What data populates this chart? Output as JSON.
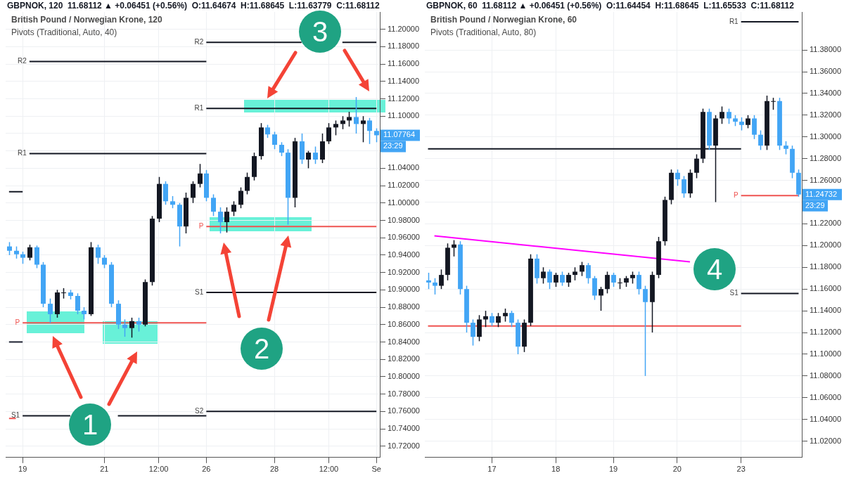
{
  "chart_data": [
    {
      "type": "candlestick",
      "title": "GBPNOK, 120  11.68112 ▲ +0.06451 (+0.56%)  O:11.64674  H:11.68645  L:11.63779  C:11.68112",
      "subtitle": "British Pound / Norwegian Krone, 120",
      "annotations": [
        "Pivots (Traditional, Auto, 40)",
        "11.07764",
        "23:29",
        "1",
        "2",
        "3"
      ],
      "categories": [
        null,
        null,
        "19",
        null,
        null,
        null,
        null,
        null,
        null,
        null,
        null,
        null,
        null,
        null,
        "21",
        null,
        null,
        null,
        null,
        null,
        null,
        null,
        "12:00",
        null,
        null,
        null,
        null,
        null,
        null,
        "26",
        null,
        null,
        null,
        null,
        null,
        null,
        null,
        null,
        null,
        "28",
        null,
        null,
        null,
        null,
        null,
        null,
        null,
        "12:00",
        null,
        null,
        null,
        null,
        null,
        null,
        "Se"
      ],
      "ohlc": [
        [
          10.95,
          10.955,
          10.94,
          10.945
        ],
        [
          10.945,
          10.95,
          10.936,
          10.941
        ],
        [
          10.941,
          10.944,
          10.93,
          10.937
        ],
        [
          10.937,
          10.952,
          10.934,
          10.949
        ],
        [
          10.949,
          10.951,
          10.925,
          10.929
        ],
        [
          10.929,
          10.932,
          10.88,
          10.884
        ],
        [
          10.884,
          10.89,
          10.862,
          10.872
        ],
        [
          10.872,
          10.9,
          10.868,
          10.897
        ],
        [
          10.897,
          10.902,
          10.89,
          10.897
        ],
        [
          10.897,
          10.9,
          10.889,
          10.893
        ],
        [
          10.893,
          10.896,
          10.872,
          10.876
        ],
        [
          10.876,
          10.88,
          10.866,
          10.872
        ],
        [
          10.872,
          10.955,
          10.87,
          10.949
        ],
        [
          10.949,
          10.952,
          10.93,
          10.937
        ],
        [
          10.937,
          10.94,
          10.925,
          10.929
        ],
        [
          10.929,
          10.932,
          10.88,
          10.884
        ],
        [
          10.884,
          10.888,
          10.855,
          10.86
        ],
        [
          10.86,
          10.866,
          10.846,
          10.856
        ],
        [
          10.856,
          10.868,
          10.845,
          10.864
        ],
        [
          10.864,
          10.868,
          10.852,
          10.86
        ],
        [
          10.86,
          10.912,
          10.858,
          10.909
        ],
        [
          10.909,
          10.985,
          10.905,
          10.982
        ],
        [
          10.982,
          11.03,
          10.978,
          11.022
        ],
        [
          11.022,
          11.025,
          10.998,
          11.002
        ],
        [
          11.002,
          11.008,
          10.994,
          10.998
        ],
        [
          10.998,
          11.0,
          10.95,
          10.973
        ],
        [
          10.973,
          11.012,
          10.965,
          11.006
        ],
        [
          11.006,
          11.025,
          11.0,
          11.022
        ],
        [
          11.022,
          11.045,
          11.018,
          11.034
        ],
        [
          11.034,
          11.038,
          11.002,
          11.006
        ],
        [
          11.006,
          11.01,
          10.985,
          10.99
        ],
        [
          10.99,
          10.995,
          10.965,
          10.978
        ],
        [
          10.978,
          10.995,
          10.966,
          10.99
        ],
        [
          10.99,
          11.002,
          10.985,
          10.998
        ],
        [
          10.998,
          11.018,
          10.994,
          11.014
        ],
        [
          11.014,
          11.035,
          11.01,
          11.03
        ],
        [
          11.03,
          11.058,
          11.026,
          11.054
        ],
        [
          11.054,
          11.092,
          11.05,
          11.087
        ],
        [
          11.087,
          11.09,
          11.075,
          11.079
        ],
        [
          11.079,
          11.082,
          11.062,
          11.067
        ],
        [
          11.067,
          11.07,
          11.054,
          11.058
        ],
        [
          11.058,
          11.062,
          10.975,
          11.006
        ],
        [
          11.006,
          11.075,
          10.995,
          11.071
        ],
        [
          11.071,
          11.08,
          11.045,
          11.05
        ],
        [
          11.05,
          11.06,
          11.04,
          11.058
        ],
        [
          11.058,
          11.065,
          11.045,
          11.05
        ],
        [
          11.05,
          11.08,
          11.046,
          11.071
        ],
        [
          11.071,
          11.092,
          11.068,
          11.087
        ],
        [
          11.087,
          11.095,
          11.078,
          11.091
        ],
        [
          11.091,
          11.1,
          11.085,
          11.095
        ],
        [
          11.095,
          11.105,
          11.088,
          11.099
        ],
        [
          11.099,
          11.122,
          11.08,
          11.091
        ],
        [
          11.091,
          11.1,
          11.07,
          11.095
        ],
        [
          11.095,
          11.098,
          11.068,
          11.083
        ],
        [
          11.083,
          11.086,
          11.07,
          11.078
        ]
      ],
      "colors": [
        "#42a5f5",
        "#42a5f5",
        "#42a5f5",
        "#131722",
        "#42a5f5",
        "#42a5f5",
        "#42a5f5",
        "#131722",
        "#131722",
        "#42a5f5",
        "#42a5f5",
        "#42a5f5",
        "#131722",
        "#42a5f5",
        "#42a5f5",
        "#42a5f5",
        "#42a5f5",
        "#42a5f5",
        "#131722",
        "#42a5f5",
        "#131722",
        "#131722",
        "#131722",
        "#42a5f5",
        "#42a5f5",
        "#42a5f5",
        "#131722",
        "#131722",
        "#131722",
        "#42a5f5",
        "#42a5f5",
        "#42a5f5",
        "#131722",
        "#131722",
        "#131722",
        "#131722",
        "#131722",
        "#131722",
        "#42a5f5",
        "#42a5f5",
        "#42a5f5",
        "#42a5f5",
        "#131722",
        "#42a5f5",
        "#131722",
        "#42a5f5",
        "#131722",
        "#131722",
        "#131722",
        "#131722",
        "#131722",
        "#42a5f5",
        "#131722",
        "#42a5f5",
        "#42a5f5"
      ],
      "series": [
        {
          "type": "line",
          "name": "R2",
          "color": "#131722",
          "values": [
            null,
            null,
            null,
            11.163,
            11.163,
            11.163,
            11.163,
            11.163,
            11.163,
            11.163,
            11.163,
            11.163,
            11.163,
            11.163,
            11.163,
            11.163,
            11.163,
            11.163,
            11.163,
            11.163,
            11.163,
            11.163,
            11.163,
            11.163,
            11.163,
            11.163,
            11.163,
            11.163,
            11.163,
            11.163,
            null,
            null,
            null,
            null,
            null,
            null,
            null,
            null,
            null,
            null,
            null,
            null,
            null,
            null,
            null,
            null,
            null,
            null,
            null,
            null,
            null,
            null,
            null,
            null,
            null
          ]
        },
        {
          "type": "line",
          "name": "R2",
          "color": "#131722",
          "values": [
            null,
            null,
            null,
            null,
            null,
            null,
            null,
            null,
            null,
            null,
            null,
            null,
            null,
            null,
            null,
            null,
            null,
            null,
            null,
            null,
            null,
            null,
            null,
            null,
            null,
            null,
            null,
            null,
            null,
            11.185,
            11.185,
            11.185,
            11.185,
            11.185,
            11.185,
            11.185,
            11.185,
            11.185,
            11.185,
            11.185,
            11.185,
            11.185,
            11.185,
            11.185,
            null,
            null,
            null,
            null,
            null,
            11.185,
            11.185,
            11.185,
            11.185,
            11.185,
            11.185
          ]
        },
        {
          "type": "line",
          "name": "R1",
          "color": "#131722",
          "values": [
            null,
            null,
            null,
            11.057,
            11.057,
            11.057,
            11.057,
            11.057,
            11.057,
            11.057,
            11.057,
            11.057,
            11.057,
            11.057,
            11.057,
            11.057,
            11.057,
            11.057,
            11.057,
            11.057,
            11.057,
            11.057,
            11.057,
            11.057,
            11.057,
            11.057,
            11.057,
            11.057,
            11.057,
            11.057,
            null,
            null,
            null,
            null,
            null,
            null,
            null,
            null,
            null,
            null,
            null,
            null,
            null,
            null,
            null,
            null,
            null,
            null,
            null,
            null,
            null,
            null,
            null,
            null,
            null
          ]
        },
        {
          "type": "line",
          "name": "R1",
          "color": "#131722",
          "values": [
            null,
            null,
            null,
            null,
            null,
            null,
            null,
            null,
            null,
            null,
            null,
            null,
            null,
            null,
            null,
            null,
            null,
            null,
            null,
            null,
            null,
            null,
            null,
            null,
            null,
            null,
            null,
            null,
            null,
            11.109,
            11.109,
            11.109,
            11.109,
            11.109,
            11.109,
            11.109,
            11.109,
            11.109,
            11.109,
            11.109,
            11.109,
            11.109,
            11.109,
            11.109,
            11.109,
            11.109,
            11.109,
            11.109,
            11.109,
            11.109,
            11.109,
            11.109,
            11.109,
            11.109,
            11.109
          ]
        },
        {
          "type": "line",
          "name": "P",
          "color": "#ef5350",
          "values": [
            null,
            null,
            10.862,
            10.862,
            10.862,
            10.862,
            10.862,
            10.862,
            10.862,
            10.862,
            10.862,
            10.862,
            10.862,
            10.862,
            10.862,
            10.862,
            10.862,
            10.862,
            10.862,
            10.862,
            10.862,
            10.862,
            10.862,
            10.862,
            10.862,
            10.862,
            10.862,
            10.862,
            10.862,
            10.862,
            null,
            null,
            null,
            null,
            null,
            null,
            null,
            null,
            null,
            null,
            null,
            null,
            null,
            null,
            null,
            null,
            null,
            null,
            null,
            null,
            null,
            null,
            null,
            null,
            null
          ]
        },
        {
          "type": "line",
          "name": "P",
          "color": "#ef5350",
          "values": [
            null,
            null,
            null,
            null,
            null,
            null,
            null,
            null,
            null,
            null,
            null,
            null,
            null,
            null,
            null,
            null,
            null,
            null,
            null,
            null,
            null,
            null,
            null,
            null,
            null,
            null,
            null,
            null,
            null,
            10.973,
            10.973,
            10.973,
            10.973,
            10.973,
            10.973,
            10.973,
            10.973,
            10.973,
            10.973,
            10.973,
            10.973,
            10.973,
            10.973,
            10.973,
            10.973,
            10.973,
            10.973,
            10.973,
            10.973,
            10.973,
            10.973,
            10.973,
            10.973,
            10.973,
            10.973
          ]
        },
        {
          "type": "line",
          "name": "S1",
          "color": "#131722",
          "values": [
            null,
            null,
            10.755,
            10.755,
            10.755,
            10.755,
            10.755,
            10.755,
            10.755,
            10.755,
            null,
            null,
            null,
            null,
            null,
            null,
            10.755,
            10.755,
            10.755,
            10.755,
            10.755,
            10.755,
            10.755,
            10.755,
            10.755,
            10.755,
            10.755,
            10.755,
            10.755,
            10.755,
            null,
            null,
            null,
            null,
            null,
            null,
            null,
            null,
            null,
            null,
            null,
            null,
            null,
            null,
            null,
            null,
            null,
            null,
            null,
            null,
            null,
            null,
            null,
            null,
            null
          ]
        },
        {
          "type": "line",
          "name": "S1",
          "color": "#131722",
          "values": [
            null,
            null,
            null,
            null,
            null,
            null,
            null,
            null,
            null,
            null,
            null,
            null,
            null,
            null,
            null,
            null,
            null,
            null,
            null,
            null,
            null,
            null,
            null,
            null,
            null,
            null,
            null,
            null,
            null,
            10.897,
            10.897,
            10.897,
            10.897,
            10.897,
            10.897,
            10.897,
            10.897,
            10.897,
            10.897,
            10.897,
            10.897,
            10.897,
            10.897,
            10.897,
            10.897,
            10.897,
            10.897,
            10.897,
            10.897,
            10.897,
            10.897,
            10.897,
            10.897,
            10.897,
            10.897
          ]
        },
        {
          "type": "line",
          "name": "S2",
          "color": "#131722",
          "values": [
            null,
            null,
            null,
            null,
            null,
            null,
            null,
            null,
            null,
            null,
            null,
            null,
            null,
            null,
            null,
            null,
            null,
            null,
            null,
            null,
            null,
            null,
            null,
            null,
            null,
            null,
            null,
            null,
            null,
            10.76,
            10.76,
            10.76,
            10.76,
            10.76,
            10.76,
            10.76,
            10.76,
            10.76,
            10.76,
            10.76,
            10.76,
            10.76,
            10.76,
            10.76,
            10.76,
            10.76,
            10.76,
            10.76,
            10.76,
            10.76,
            10.76,
            10.76,
            10.76,
            10.76,
            10.76
          ]
        },
        {
          "type": "line",
          "color": "#131722",
          "values": [
            11.013,
            11.013,
            11.013,
            null,
            null,
            null,
            null,
            null,
            null,
            null,
            null,
            null,
            null,
            null,
            null,
            null,
            null,
            null,
            null,
            null,
            null,
            null,
            null,
            null,
            null,
            null,
            null,
            null,
            null,
            null,
            null,
            null,
            null,
            null,
            null,
            null,
            null,
            null,
            null,
            null,
            null,
            null,
            null,
            null,
            null,
            null,
            null,
            null,
            null,
            null,
            null,
            null,
            null,
            null,
            null
          ]
        },
        {
          "type": "line",
          "color": "#1c2030",
          "values": [
            10.84,
            10.84,
            10.84,
            null,
            null,
            null,
            null,
            null,
            null,
            null,
            null,
            null,
            null,
            null,
            null,
            null,
            null,
            null,
            null,
            null,
            null,
            null,
            null,
            null,
            null,
            null,
            null,
            null,
            null,
            null,
            null,
            null,
            null,
            null,
            null,
            null,
            null,
            null,
            null,
            null,
            null,
            null,
            null,
            null,
            null,
            null,
            null,
            null,
            null,
            null,
            null,
            null,
            null,
            null,
            null
          ]
        },
        {
          "type": "line",
          "color": "#ef5350",
          "values": [
            10.752,
            10.752,
            null,
            null,
            null,
            null,
            null,
            null,
            null,
            null,
            null,
            null,
            null,
            null,
            null,
            null,
            null,
            null,
            null,
            null,
            null,
            null,
            null,
            null,
            null,
            null,
            null,
            null,
            null,
            null,
            null,
            null,
            null,
            null,
            null,
            null,
            null,
            null,
            null,
            null,
            null,
            null,
            null,
            null,
            null,
            null,
            null,
            null,
            null,
            null,
            null,
            null,
            null,
            null,
            null
          ]
        }
      ],
      "ylim": [
        10.707,
        11.22
      ],
      "yticks": [
        {
          "value": 10.72,
          "label": "10.72000"
        },
        {
          "value": 10.74,
          "label": "10.74000"
        },
        {
          "value": 10.76,
          "label": "10.76000"
        },
        {
          "value": 10.78,
          "label": "10.78000"
        },
        {
          "value": 10.8,
          "label": "10.80000"
        },
        {
          "value": 10.82,
          "label": "10.82000"
        },
        {
          "value": 10.84,
          "label": "10.84000"
        },
        {
          "value": 10.86,
          "label": "10.86000"
        },
        {
          "value": 10.88,
          "label": "10.88000"
        },
        {
          "value": 10.9,
          "label": "10.90000"
        },
        {
          "value": 10.92,
          "label": "10.92000"
        },
        {
          "value": 10.94,
          "label": "10.94000"
        },
        {
          "value": 10.96,
          "label": "10.96000"
        },
        {
          "value": 10.98,
          "label": "10.98000"
        },
        {
          "value": 11.0,
          "label": "11.00000"
        },
        {
          "value": 11.02,
          "label": "11.02000"
        },
        {
          "value": 11.04,
          "label": "11.04000"
        },
        {
          "value": 11.06,
          "label": null
        },
        {
          "value": 11.08,
          "label": null
        },
        {
          "value": 11.1,
          "label": "11.10000"
        },
        {
          "value": 11.12,
          "label": "11.12000"
        },
        {
          "value": 11.14,
          "label": "11.14000"
        },
        {
          "value": 11.16,
          "label": "11.16000"
        },
        {
          "value": 11.18,
          "label": "11.18000"
        },
        {
          "value": 11.2,
          "label": "11.20000"
        }
      ],
      "grid": true
    },
    {
      "type": "candlestick",
      "title": "GBPNOK, 60  11.68112 ▲ +0.06451 (+0.56%)  O:11.64454  H:11.68645  L:11.65533  C:11.68112",
      "subtitle": "British Pound / Norwegian Krone, 60",
      "annotations": [
        "Pivots (Traditional, Auto, 80)",
        "11.24732",
        "23:29",
        "4"
      ],
      "categories": [
        null,
        null,
        null,
        null,
        null,
        null,
        null,
        null,
        null,
        null,
        "17",
        null,
        null,
        null,
        null,
        null,
        null,
        null,
        null,
        null,
        "18",
        null,
        null,
        null,
        null,
        null,
        null,
        null,
        null,
        "19",
        null,
        null,
        null,
        null,
        null,
        null,
        null,
        null,
        null,
        "20",
        null,
        null,
        null,
        null,
        null,
        null,
        null,
        null,
        null,
        "23",
        null,
        null,
        null,
        null,
        null,
        null,
        null,
        null,
        null
      ],
      "ohlc": [
        [
          11.168,
          11.175,
          11.16,
          11.166
        ],
        [
          11.166,
          11.17,
          11.155,
          11.163
        ],
        [
          11.163,
          11.178,
          11.16,
          11.173
        ],
        [
          11.173,
          11.202,
          11.168,
          11.198
        ],
        [
          11.198,
          11.205,
          11.19,
          11.201
        ],
        [
          11.201,
          11.204,
          11.155,
          11.16
        ],
        [
          11.16,
          11.163,
          11.12,
          11.129
        ],
        [
          11.129,
          11.132,
          11.108,
          11.116
        ],
        [
          11.116,
          11.136,
          11.112,
          11.132
        ],
        [
          11.132,
          11.14,
          11.125,
          11.135
        ],
        [
          11.135,
          11.138,
          11.126,
          11.129
        ],
        [
          11.129,
          11.138,
          11.125,
          11.135
        ],
        [
          11.135,
          11.142,
          11.13,
          11.138
        ],
        [
          11.138,
          11.14,
          11.125,
          11.129
        ],
        [
          11.129,
          11.132,
          11.1,
          11.107
        ],
        [
          11.107,
          11.132,
          11.102,
          11.129
        ],
        [
          11.129,
          11.192,
          11.126,
          11.188
        ],
        [
          11.188,
          11.192,
          11.165,
          11.17
        ],
        [
          11.17,
          11.18,
          11.165,
          11.176
        ],
        [
          11.176,
          11.178,
          11.16,
          11.166
        ],
        [
          11.166,
          11.175,
          11.162,
          11.173
        ],
        [
          11.173,
          11.176,
          11.163,
          11.166
        ],
        [
          11.166,
          11.175,
          11.162,
          11.173
        ],
        [
          11.173,
          11.18,
          11.168,
          11.176
        ],
        [
          11.176,
          11.185,
          11.172,
          11.182
        ],
        [
          11.182,
          11.184,
          11.165,
          11.17
        ],
        [
          11.17,
          11.172,
          11.15,
          11.154
        ],
        [
          11.154,
          11.162,
          11.14,
          11.16
        ],
        [
          11.16,
          11.176,
          11.156,
          11.173
        ],
        [
          11.173,
          11.175,
          11.162,
          11.166
        ],
        [
          11.166,
          11.17,
          11.16,
          11.166
        ],
        [
          11.166,
          11.172,
          11.162,
          11.17
        ],
        [
          11.17,
          11.176,
          11.165,
          11.173
        ],
        [
          11.173,
          11.176,
          11.155,
          11.16
        ],
        [
          11.16,
          11.163,
          11.08,
          11.148
        ],
        [
          11.148,
          11.176,
          11.12,
          11.173
        ],
        [
          11.173,
          11.208,
          11.17,
          11.204
        ],
        [
          11.204,
          11.245,
          11.2,
          11.242
        ],
        [
          11.242,
          11.27,
          11.238,
          11.267
        ],
        [
          11.267,
          11.27,
          11.255,
          11.261
        ],
        [
          11.261,
          11.264,
          11.244,
          11.248
        ],
        [
          11.248,
          11.27,
          11.244,
          11.267
        ],
        [
          11.267,
          11.284,
          11.262,
          11.28
        ],
        [
          11.28,
          11.326,
          11.276,
          11.323
        ],
        [
          11.323,
          11.326,
          11.288,
          11.292
        ],
        [
          11.292,
          11.32,
          11.24,
          11.317
        ],
        [
          11.317,
          11.328,
          11.312,
          11.323
        ],
        [
          11.323,
          11.326,
          11.312,
          11.317
        ],
        [
          11.317,
          11.32,
          11.31,
          11.314
        ],
        [
          11.314,
          11.318,
          11.306,
          11.311
        ],
        [
          11.311,
          11.32,
          11.308,
          11.317
        ],
        [
          11.317,
          11.32,
          11.298,
          11.302
        ],
        [
          11.302,
          11.306,
          11.288,
          11.292
        ],
        [
          11.292,
          11.338,
          11.288,
          11.333
        ],
        [
          11.333,
          11.336,
          11.325,
          11.333
        ],
        [
          11.333,
          11.336,
          11.288,
          11.292
        ],
        [
          11.292,
          11.296,
          11.284,
          11.289
        ],
        [
          11.289,
          11.292,
          11.262,
          11.267
        ],
        [
          11.267,
          11.27,
          11.245,
          11.247
        ]
      ],
      "colors": [
        "#42a5f5",
        "#42a5f5",
        "#131722",
        "#131722",
        "#131722",
        "#42a5f5",
        "#42a5f5",
        "#42a5f5",
        "#131722",
        "#131722",
        "#42a5f5",
        "#131722",
        "#131722",
        "#42a5f5",
        "#42a5f5",
        "#131722",
        "#131722",
        "#42a5f5",
        "#131722",
        "#42a5f5",
        "#131722",
        "#42a5f5",
        "#131722",
        "#131722",
        "#131722",
        "#42a5f5",
        "#42a5f5",
        "#131722",
        "#131722",
        "#42a5f5",
        "#131722",
        "#131722",
        "#131722",
        "#42a5f5",
        "#42a5f5",
        "#131722",
        "#131722",
        "#131722",
        "#131722",
        "#42a5f5",
        "#42a5f5",
        "#131722",
        "#131722",
        "#131722",
        "#42a5f5",
        "#131722",
        "#131722",
        "#42a5f5",
        "#42a5f5",
        "#42a5f5",
        "#131722",
        "#42a5f5",
        "#42a5f5",
        "#131722",
        "#131722",
        "#42a5f5",
        "#42a5f5",
        "#42a5f5",
        "#42a5f5"
      ],
      "series": [
        {
          "type": "line",
          "name": "R1",
          "color": "#131722",
          "values": [
            null,
            null,
            null,
            null,
            null,
            null,
            null,
            null,
            null,
            null,
            null,
            null,
            null,
            null,
            null,
            null,
            null,
            null,
            null,
            null,
            null,
            null,
            null,
            null,
            null,
            null,
            null,
            null,
            null,
            null,
            null,
            null,
            null,
            null,
            null,
            null,
            null,
            null,
            null,
            null,
            null,
            null,
            null,
            null,
            null,
            null,
            null,
            null,
            null,
            11.406,
            11.406,
            11.406,
            11.406,
            11.406,
            11.406,
            11.406,
            11.406,
            11.406,
            11.406
          ]
        },
        {
          "type": "line",
          "color": "#131722",
          "values": [
            11.289,
            11.289,
            11.289,
            11.289,
            11.289,
            11.289,
            11.289,
            11.289,
            11.289,
            11.289,
            11.289,
            11.289,
            11.289,
            11.289,
            11.289,
            11.289,
            11.289,
            11.289,
            11.289,
            11.289,
            11.289,
            11.289,
            11.289,
            11.289,
            11.289,
            11.289,
            11.289,
            11.289,
            11.289,
            11.289,
            11.289,
            11.289,
            11.289,
            11.289,
            11.289,
            11.289,
            11.289,
            11.289,
            11.289,
            11.289,
            11.289,
            11.289,
            11.289,
            11.289,
            11.289,
            11.289,
            11.289,
            11.289,
            11.289,
            11.289,
            null,
            null,
            null,
            null,
            null,
            null,
            null,
            null,
            null
          ]
        },
        {
          "type": "line",
          "name": "P",
          "color": "#ef5350",
          "values": [
            null,
            null,
            null,
            null,
            null,
            null,
            null,
            null,
            null,
            null,
            null,
            null,
            null,
            null,
            null,
            null,
            null,
            null,
            null,
            null,
            null,
            null,
            null,
            null,
            null,
            null,
            null,
            null,
            null,
            null,
            null,
            null,
            null,
            null,
            null,
            null,
            null,
            null,
            null,
            null,
            null,
            null,
            null,
            null,
            null,
            null,
            null,
            null,
            null,
            11.246,
            11.246,
            11.246,
            11.246,
            11.246,
            11.246,
            11.246,
            11.246,
            11.246,
            11.246
          ]
        },
        {
          "type": "line",
          "name": "S1",
          "color": "#131722",
          "values": [
            null,
            null,
            null,
            null,
            null,
            null,
            null,
            null,
            null,
            null,
            null,
            null,
            null,
            null,
            null,
            null,
            null,
            null,
            null,
            null,
            null,
            null,
            null,
            null,
            null,
            null,
            null,
            null,
            null,
            null,
            null,
            null,
            null,
            null,
            null,
            null,
            null,
            null,
            null,
            null,
            null,
            null,
            null,
            null,
            null,
            null,
            null,
            null,
            null,
            11.156,
            11.156,
            11.156,
            11.156,
            11.156,
            11.156,
            11.156,
            11.156,
            11.156,
            11.156
          ]
        },
        {
          "type": "line",
          "color": "#ef5350",
          "values": [
            11.126,
            11.126,
            11.126,
            11.126,
            11.126,
            11.126,
            11.126,
            11.126,
            11.126,
            11.126,
            11.126,
            11.126,
            11.126,
            11.126,
            11.126,
            11.126,
            11.126,
            11.126,
            11.126,
            11.126,
            11.126,
            11.126,
            11.126,
            11.126,
            11.126,
            11.126,
            11.126,
            11.126,
            11.126,
            11.126,
            11.126,
            11.126,
            11.126,
            11.126,
            11.126,
            11.126,
            11.126,
            11.126,
            11.126,
            11.126,
            11.126,
            11.126,
            11.126,
            11.126,
            11.126,
            11.126,
            11.126,
            11.126,
            11.126,
            11.126,
            null,
            null,
            null,
            null,
            null,
            null,
            null,
            null,
            null
          ]
        },
        {
          "type": "line",
          "color": "#ff00ff",
          "values": [
            null,
            11.209,
            null,
            null,
            null,
            null,
            null,
            null,
            null,
            null,
            null,
            null,
            null,
            null,
            null,
            null,
            null,
            null,
            null,
            null,
            null,
            null,
            null,
            null,
            null,
            null,
            null,
            null,
            null,
            null,
            null,
            null,
            null,
            null,
            null,
            null,
            null,
            null,
            null,
            null,
            null,
            11.185,
            null,
            null,
            null,
            null,
            null,
            null,
            null,
            null,
            null,
            null,
            null,
            null,
            null,
            null,
            null,
            null,
            null
          ]
        }
      ],
      "ylim": [
        11.005,
        11.415
      ],
      "yticks": [
        {
          "value": 11.02,
          "label": "11.02000"
        },
        {
          "value": 11.04,
          "label": "11.04000"
        },
        {
          "value": 11.06,
          "label": "11.06000"
        },
        {
          "value": 11.08,
          "label": "11.08000"
        },
        {
          "value": 11.1,
          "label": "11.10000"
        },
        {
          "value": 11.12,
          "label": "11.12000"
        },
        {
          "value": 11.14,
          "label": "11.14000"
        },
        {
          "value": 11.16,
          "label": "11.16000"
        },
        {
          "value": 11.18,
          "label": "11.18000"
        },
        {
          "value": 11.2,
          "label": "11.20000"
        },
        {
          "value": 11.22,
          "label": "11.22000"
        },
        {
          "value": 11.24,
          "label": null
        },
        {
          "value": 11.26,
          "label": "11.26000"
        },
        {
          "value": 11.28,
          "label": "11.28000"
        },
        {
          "value": 11.3,
          "label": "11.30000"
        },
        {
          "value": 11.32,
          "label": "11.32000"
        },
        {
          "value": 11.34,
          "label": "11.34000"
        },
        {
          "value": 11.36,
          "label": "11.36000"
        },
        {
          "value": 11.38,
          "label": "11.38000"
        }
      ],
      "grid": true
    }
  ]
}
